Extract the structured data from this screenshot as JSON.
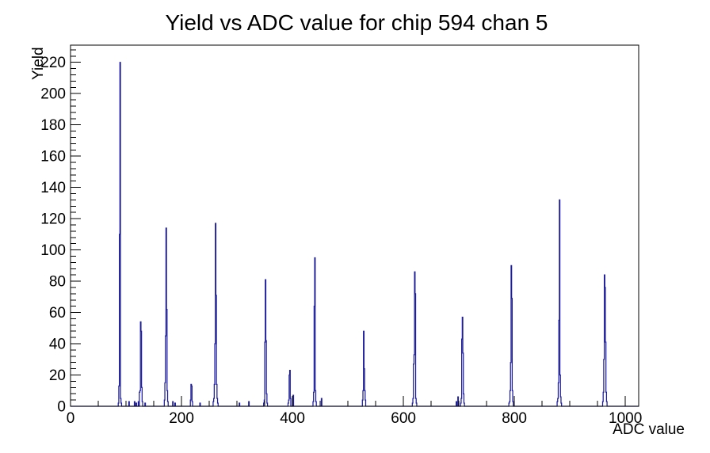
{
  "chart_data": {
    "type": "bar",
    "title": "Yield vs ADC value for chip 594 chan 5",
    "xlabel": "ADC value",
    "ylabel": "Yield",
    "xlim": [
      0,
      1024
    ],
    "ylim": [
      0,
      231
    ],
    "x_major_ticks": [
      0,
      200,
      400,
      600,
      800,
      1000
    ],
    "x_minor_step": 50,
    "y_major_ticks": [
      0,
      20,
      40,
      60,
      80,
      100,
      120,
      140,
      160,
      180,
      200,
      220
    ],
    "y_minor_step": 4,
    "grid": "off",
    "legend": "none",
    "line_color": "#1d1d9c",
    "frame_color": "#000000",
    "background_color": "#ffffff",
    "peak_summary": [
      {
        "adc": 89,
        "yield": 220
      },
      {
        "adc": 126,
        "yield": 54
      },
      {
        "adc": 172,
        "yield": 114
      },
      {
        "adc": 217,
        "yield": 14
      },
      {
        "adc": 261,
        "yield": 117
      },
      {
        "adc": 351,
        "yield": 81
      },
      {
        "adc": 395,
        "yield": 23
      },
      {
        "adc": 440,
        "yield": 95
      },
      {
        "adc": 528,
        "yield": 48
      },
      {
        "adc": 620,
        "yield": 86
      },
      {
        "adc": 706,
        "yield": 57
      },
      {
        "adc": 794,
        "yield": 90
      },
      {
        "adc": 881,
        "yield": 132
      },
      {
        "adc": 962,
        "yield": 84
      }
    ],
    "bins": [
      [
        86,
        2
      ],
      [
        87,
        13
      ],
      [
        88,
        110
      ],
      [
        89,
        220
      ],
      [
        90,
        5
      ],
      [
        91,
        2
      ],
      [
        105,
        3
      ],
      [
        115,
        3
      ],
      [
        118,
        2
      ],
      [
        122,
        3
      ],
      [
        124,
        9
      ],
      [
        125,
        10
      ],
      [
        126,
        54
      ],
      [
        127,
        48
      ],
      [
        128,
        12
      ],
      [
        129,
        3
      ],
      [
        134,
        2
      ],
      [
        169,
        4
      ],
      [
        170,
        15
      ],
      [
        171,
        45
      ],
      [
        172,
        114
      ],
      [
        173,
        62
      ],
      [
        174,
        10
      ],
      [
        175,
        3
      ],
      [
        184,
        3
      ],
      [
        188,
        2
      ],
      [
        216,
        4
      ],
      [
        217,
        14
      ],
      [
        218,
        13
      ],
      [
        219,
        3
      ],
      [
        233,
        2
      ],
      [
        257,
        3
      ],
      [
        258,
        5
      ],
      [
        259,
        14
      ],
      [
        260,
        40
      ],
      [
        261,
        117
      ],
      [
        262,
        71
      ],
      [
        263,
        14
      ],
      [
        264,
        5
      ],
      [
        265,
        2
      ],
      [
        304,
        2
      ],
      [
        321,
        3
      ],
      [
        348,
        2
      ],
      [
        349,
        4
      ],
      [
        350,
        41
      ],
      [
        351,
        81
      ],
      [
        352,
        42
      ],
      [
        353,
        8
      ],
      [
        354,
        2
      ],
      [
        392,
        2
      ],
      [
        393,
        4
      ],
      [
        394,
        20
      ],
      [
        395,
        23
      ],
      [
        396,
        5
      ],
      [
        401,
        7
      ],
      [
        437,
        3
      ],
      [
        438,
        9
      ],
      [
        439,
        64
      ],
      [
        440,
        95
      ],
      [
        441,
        10
      ],
      [
        442,
        3
      ],
      [
        452,
        5
      ],
      [
        526,
        4
      ],
      [
        527,
        10
      ],
      [
        528,
        48
      ],
      [
        529,
        24
      ],
      [
        530,
        10
      ],
      [
        531,
        4
      ],
      [
        616,
        2
      ],
      [
        617,
        5
      ],
      [
        618,
        27
      ],
      [
        619,
        33
      ],
      [
        620,
        86
      ],
      [
        621,
        72
      ],
      [
        622,
        5
      ],
      [
        623,
        2
      ],
      [
        695,
        3
      ],
      [
        698,
        6
      ],
      [
        703,
        2
      ],
      [
        704,
        5
      ],
      [
        705,
        43
      ],
      [
        706,
        57
      ],
      [
        707,
        34
      ],
      [
        708,
        8
      ],
      [
        709,
        2
      ],
      [
        790,
        2
      ],
      [
        791,
        3
      ],
      [
        792,
        10
      ],
      [
        793,
        28
      ],
      [
        794,
        90
      ],
      [
        795,
        69
      ],
      [
        796,
        10
      ],
      [
        797,
        3
      ],
      [
        877,
        3
      ],
      [
        878,
        5
      ],
      [
        879,
        15
      ],
      [
        880,
        55
      ],
      [
        881,
        132
      ],
      [
        882,
        20
      ],
      [
        883,
        6
      ],
      [
        884,
        2
      ],
      [
        959,
        3
      ],
      [
        960,
        9
      ],
      [
        961,
        30
      ],
      [
        962,
        84
      ],
      [
        963,
        76
      ],
      [
        964,
        41
      ],
      [
        965,
        9
      ],
      [
        966,
        3
      ]
    ]
  }
}
